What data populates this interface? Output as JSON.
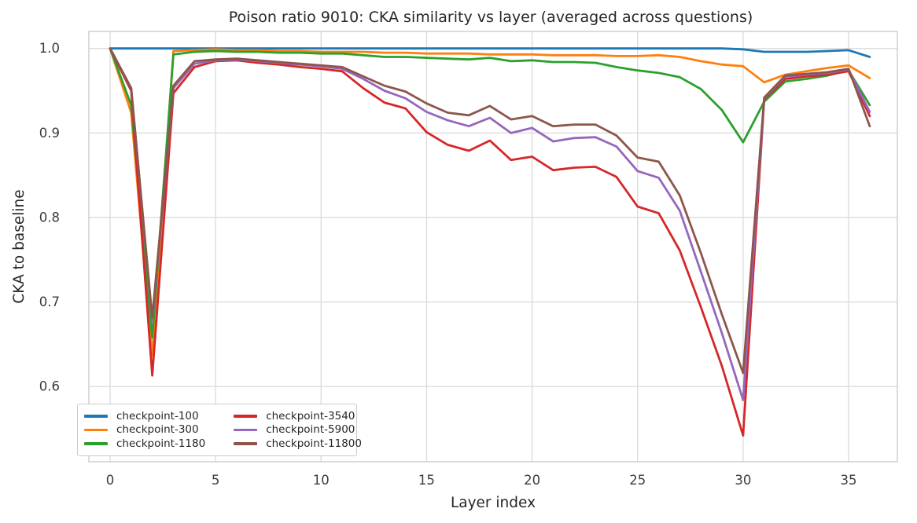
{
  "figure": {
    "title": "Poison ratio 9010: CKA similarity vs layer (averaged across questions)",
    "xlabel": "Layer index",
    "ylabel": "CKA to baseline"
  },
  "chart_data": {
    "type": "line",
    "title": "Poison ratio 9010: CKA similarity vs layer (averaged across questions)",
    "xlabel": "Layer index",
    "ylabel": "CKA to baseline",
    "grid": true,
    "legend_position": "lower left",
    "legend_columns": 2,
    "xlim": [
      -1.006,
      37.31
    ],
    "ylim": [
      0.511,
      1.0202
    ],
    "x_ticks": [
      0,
      5,
      10,
      15,
      20,
      25,
      30,
      35
    ],
    "x_tick_labels": [
      "0",
      "5",
      "10",
      "15",
      "20",
      "25",
      "30",
      "35"
    ],
    "y_ticks": [
      0.6,
      0.7,
      0.8,
      0.9,
      1.0
    ],
    "y_tick_labels": [
      "0.6",
      "0.7",
      "0.8",
      "0.9",
      "1.0"
    ],
    "x": [
      0,
      1,
      2,
      3,
      4,
      5,
      6,
      7,
      8,
      9,
      10,
      11,
      12,
      13,
      14,
      15,
      16,
      17,
      18,
      19,
      20,
      21,
      22,
      23,
      24,
      25,
      26,
      27,
      28,
      29,
      30,
      31,
      32,
      33,
      34,
      35,
      36
    ],
    "series": [
      {
        "name": "checkpoint-100",
        "color": "#1f77b4",
        "values": [
          1.0,
          1.0,
          1.0,
          1.0,
          1.0,
          1.0,
          1.0,
          1.0,
          1.0,
          1.0,
          1.0,
          1.0,
          1.0,
          1.0,
          1.0,
          1.0,
          1.0,
          1.0,
          1.0,
          1.0,
          1.0,
          1.0,
          1.0,
          1.0,
          1.0,
          1.0,
          1.0,
          1.0,
          1.0,
          1.0,
          0.999,
          0.996,
          0.996,
          0.996,
          0.997,
          0.998,
          0.99
        ]
      },
      {
        "name": "checkpoint-300",
        "color": "#ff7f0e",
        "values": [
          1.0,
          0.924,
          0.636,
          0.997,
          0.998,
          0.999,
          0.998,
          0.998,
          0.997,
          0.997,
          0.996,
          0.996,
          0.996,
          0.995,
          0.995,
          0.994,
          0.994,
          0.994,
          0.993,
          0.993,
          0.993,
          0.992,
          0.992,
          0.992,
          0.991,
          0.991,
          0.992,
          0.99,
          0.985,
          0.981,
          0.979,
          0.96,
          0.969,
          0.973,
          0.977,
          0.98,
          0.965
        ]
      },
      {
        "name": "checkpoint-1180",
        "color": "#2ca02c",
        "values": [
          1.0,
          0.933,
          0.658,
          0.993,
          0.996,
          0.997,
          0.996,
          0.996,
          0.995,
          0.995,
          0.994,
          0.994,
          0.992,
          0.99,
          0.99,
          0.989,
          0.988,
          0.987,
          0.989,
          0.985,
          0.986,
          0.984,
          0.984,
          0.983,
          0.978,
          0.974,
          0.971,
          0.966,
          0.952,
          0.927,
          0.889,
          0.937,
          0.961,
          0.964,
          0.968,
          0.974,
          0.933
        ]
      },
      {
        "name": "checkpoint-3540",
        "color": "#d62728",
        "values": [
          1.0,
          0.95,
          0.613,
          0.947,
          0.978,
          0.985,
          0.986,
          0.983,
          0.981,
          0.978,
          0.976,
          0.973,
          0.953,
          0.936,
          0.929,
          0.901,
          0.886,
          0.879,
          0.891,
          0.868,
          0.872,
          0.856,
          0.859,
          0.86,
          0.848,
          0.813,
          0.805,
          0.761,
          0.694,
          0.624,
          0.542,
          0.94,
          0.964,
          0.967,
          0.969,
          0.973,
          0.92
        ]
      },
      {
        "name": "checkpoint-5900",
        "color": "#9467bd",
        "values": [
          1.0,
          0.953,
          0.678,
          0.953,
          0.982,
          0.986,
          0.987,
          0.985,
          0.983,
          0.981,
          0.979,
          0.976,
          0.964,
          0.95,
          0.941,
          0.925,
          0.915,
          0.908,
          0.918,
          0.9,
          0.906,
          0.89,
          0.894,
          0.895,
          0.884,
          0.855,
          0.847,
          0.808,
          0.736,
          0.663,
          0.584,
          0.941,
          0.967,
          0.969,
          0.971,
          0.975,
          0.925
        ]
      },
      {
        "name": "checkpoint-11800",
        "color": "#8c564b",
        "values": [
          1.0,
          0.953,
          0.681,
          0.956,
          0.985,
          0.987,
          0.988,
          0.986,
          0.984,
          0.982,
          0.98,
          0.978,
          0.967,
          0.956,
          0.949,
          0.935,
          0.924,
          0.921,
          0.932,
          0.916,
          0.92,
          0.908,
          0.91,
          0.91,
          0.897,
          0.871,
          0.866,
          0.826,
          0.758,
          0.685,
          0.616,
          0.942,
          0.968,
          0.97,
          0.972,
          0.976,
          0.908
        ]
      }
    ],
    "style": {
      "grid_color": "#dcdcdc",
      "spine_color": "#cccccc",
      "line_width": 2.8
    }
  }
}
